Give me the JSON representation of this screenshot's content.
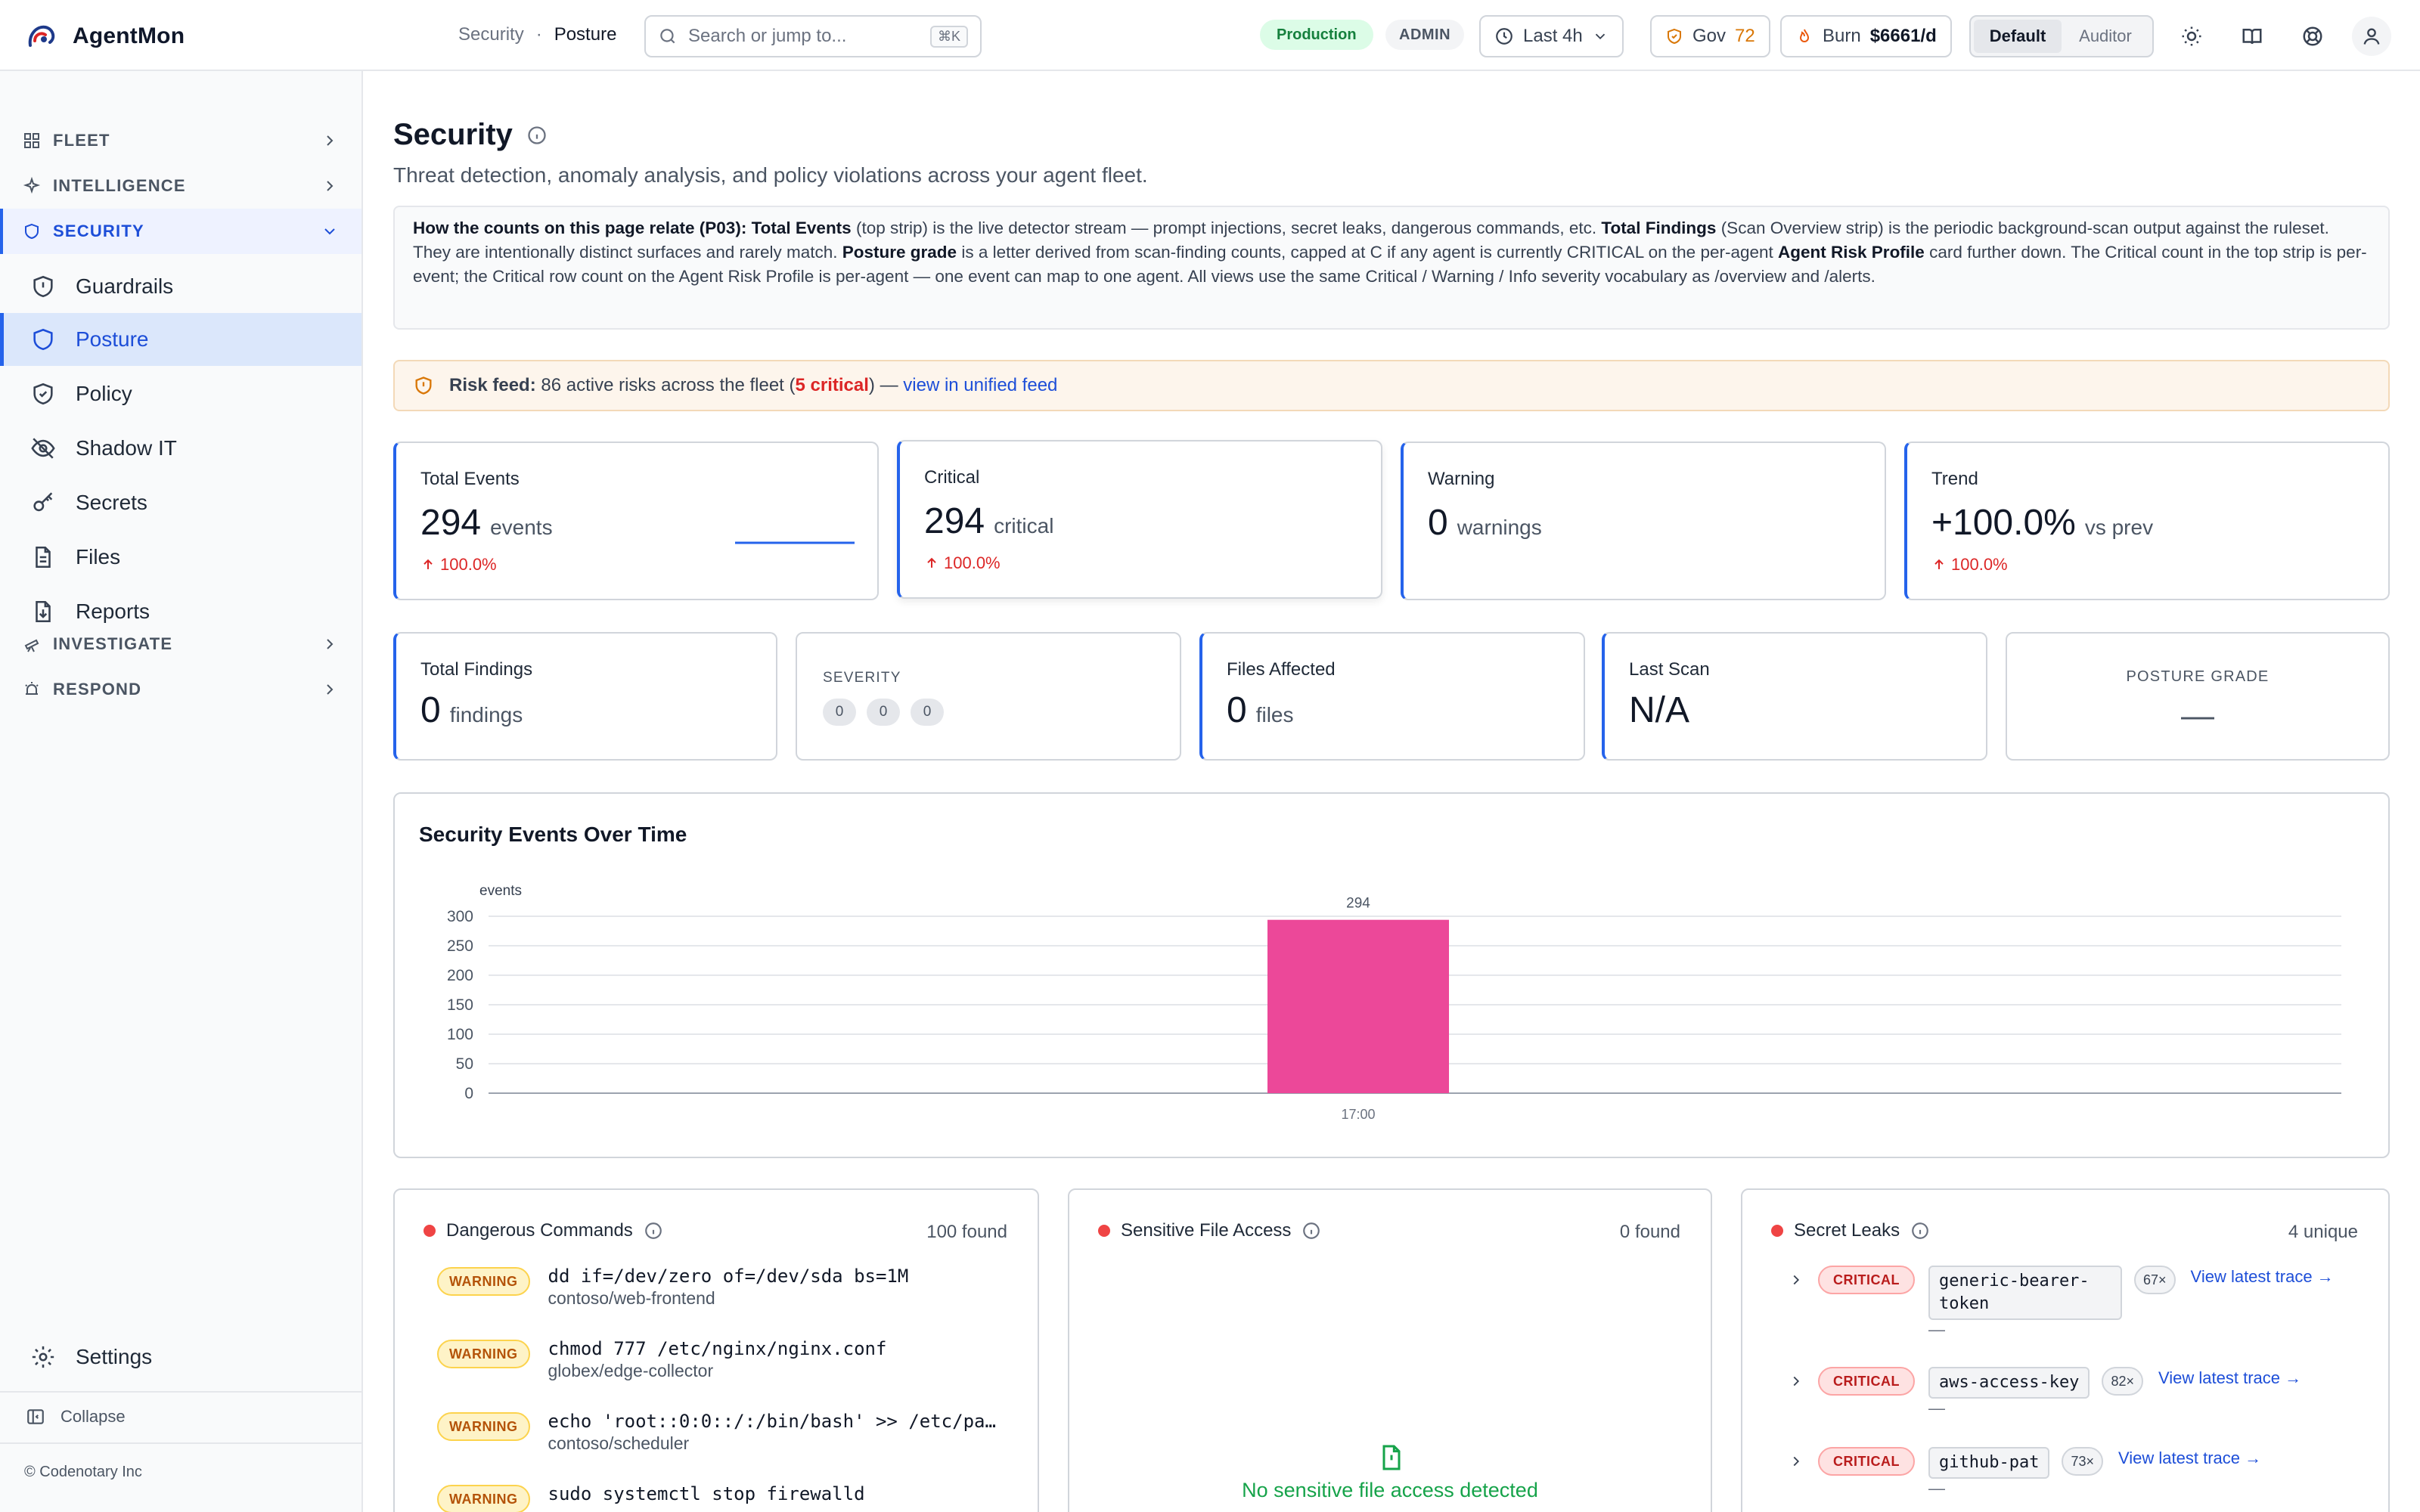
{
  "app": {
    "name": "AgentMon"
  },
  "breadcrumb": {
    "section": "Security",
    "sep": "·",
    "current": "Posture"
  },
  "search": {
    "placeholder": "Search or jump to...",
    "shortcut": "⌘K"
  },
  "header": {
    "env": "Production",
    "role": "ADMIN",
    "range": "Last 4h",
    "gov_label": "Gov",
    "gov_value": "72",
    "burn_label": "Burn",
    "burn_value": "$6661/d",
    "view_default": "Default",
    "view_auditor": "Auditor"
  },
  "sidebar": {
    "groups": {
      "fleet": "FLEET",
      "intelligence": "INTELLIGENCE",
      "security": "SECURITY",
      "investigate": "INVESTIGATE",
      "respond": "RESPOND"
    },
    "items": [
      "Guardrails",
      "Posture",
      "Policy",
      "Shadow IT",
      "Secrets",
      "Files",
      "Reports"
    ],
    "settings": "Settings",
    "collapse": "Collapse",
    "footer": "© Codenotary Inc"
  },
  "page": {
    "title": "Security",
    "subtitle": "Threat detection, anomaly analysis, and policy violations across your agent fleet.",
    "note": {
      "lead": "How the counts on this page relate (P03):",
      "t1": "Total Events",
      "s1": " (top strip) is the live detector stream — prompt injections, secret leaks, dangerous commands, etc. ",
      "t2": "Total Findings",
      "s2": " (Scan Overview strip) is the periodic background-scan output against the ruleset. They are intentionally distinct surfaces and rarely match. ",
      "t3": "Posture grade",
      "s3": " is a letter derived from scan-finding counts, capped at C if any agent is currently CRITICAL on the per-agent ",
      "t4": "Agent Risk Profile",
      "s4": " card further down. The Critical count in the top strip is per-event; the Critical row count on the Agent Risk Profile is per-agent — one event can map to one agent. All views use the same Critical / Warning / Info severity vocabulary as /overview and /alerts."
    },
    "riskfeed": {
      "label": "Risk feed:",
      "text": "86 active risks across the fleet (",
      "critical": "5 critical",
      "close": ") —",
      "link": "view in unified feed"
    }
  },
  "kpis": [
    {
      "label": "Total Events",
      "value": "294",
      "unit": "events",
      "delta": "100.0%"
    },
    {
      "label": "Critical",
      "value": "294",
      "unit": "critical",
      "delta": "100.0%"
    },
    {
      "label": "Warning",
      "value": "0",
      "unit": "warnings"
    },
    {
      "label": "Trend",
      "value": "+100.0%",
      "unit": "vs prev",
      "delta": "100.0%"
    }
  ],
  "scan": {
    "total_findings": {
      "label": "Total Findings",
      "value": "0",
      "unit": "findings"
    },
    "severity": {
      "label": "SEVERITY",
      "counts": [
        "0",
        "0",
        "0"
      ]
    },
    "files_affected": {
      "label": "Files Affected",
      "value": "0",
      "unit": "files"
    },
    "last_scan": {
      "label": "Last Scan",
      "value": "N/A"
    },
    "posture": {
      "label": "POSTURE GRADE",
      "value": "—"
    }
  },
  "chart_data": {
    "type": "bar",
    "title": "Security Events Over Time",
    "ylabel": "events",
    "categories": [
      "17:00"
    ],
    "values": [
      294
    ],
    "ylim": [
      0,
      300
    ],
    "yticks": [
      "300",
      "250",
      "200",
      "150",
      "100",
      "50",
      "0"
    ],
    "grid": true,
    "color": "#ec4899"
  },
  "panels": {
    "dangerous": {
      "title": "Dangerous Commands",
      "count": "100 found",
      "rows": [
        {
          "badge": "WARNING",
          "cmd": "dd if=/dev/zero of=/dev/sda bs=1M",
          "agent": "contoso/web-frontend"
        },
        {
          "badge": "WARNING",
          "cmd": "chmod 777 /etc/nginx/nginx.conf",
          "agent": "globex/edge-collector"
        },
        {
          "badge": "WARNING",
          "cmd": "echo 'root::0:0::/:/bin/bash' >> /etc/pa…",
          "agent": "contoso/scheduler"
        },
        {
          "badge": "WARNING",
          "cmd": "sudo systemctl stop firewalld",
          "agent": ""
        }
      ]
    },
    "files": {
      "title": "Sensitive File Access",
      "count": "0 found",
      "empty": "No sensitive file access detected"
    },
    "secrets": {
      "title": "Secret Leaks",
      "count": "4 unique",
      "rows": [
        {
          "badge": "CRITICAL",
          "name_l1": "generic-bearer-",
          "name_l2": "token",
          "count": "67×",
          "link": "View latest trace →",
          "sub": "—"
        },
        {
          "badge": "CRITICAL",
          "name_l1": "aws-access-key",
          "name_l2": "",
          "count": "82×",
          "link": "View latest trace →",
          "sub": "—"
        },
        {
          "badge": "CRITICAL",
          "name_l1": "github-pat",
          "name_l2": "",
          "count": "73×",
          "link": "View latest trace →",
          "sub": "—"
        }
      ]
    }
  },
  "colors": {
    "accent": "#2563eb",
    "critical": "#dc2626",
    "bar": "#ec4899",
    "warning": "#b45309",
    "success": "#15803d"
  }
}
